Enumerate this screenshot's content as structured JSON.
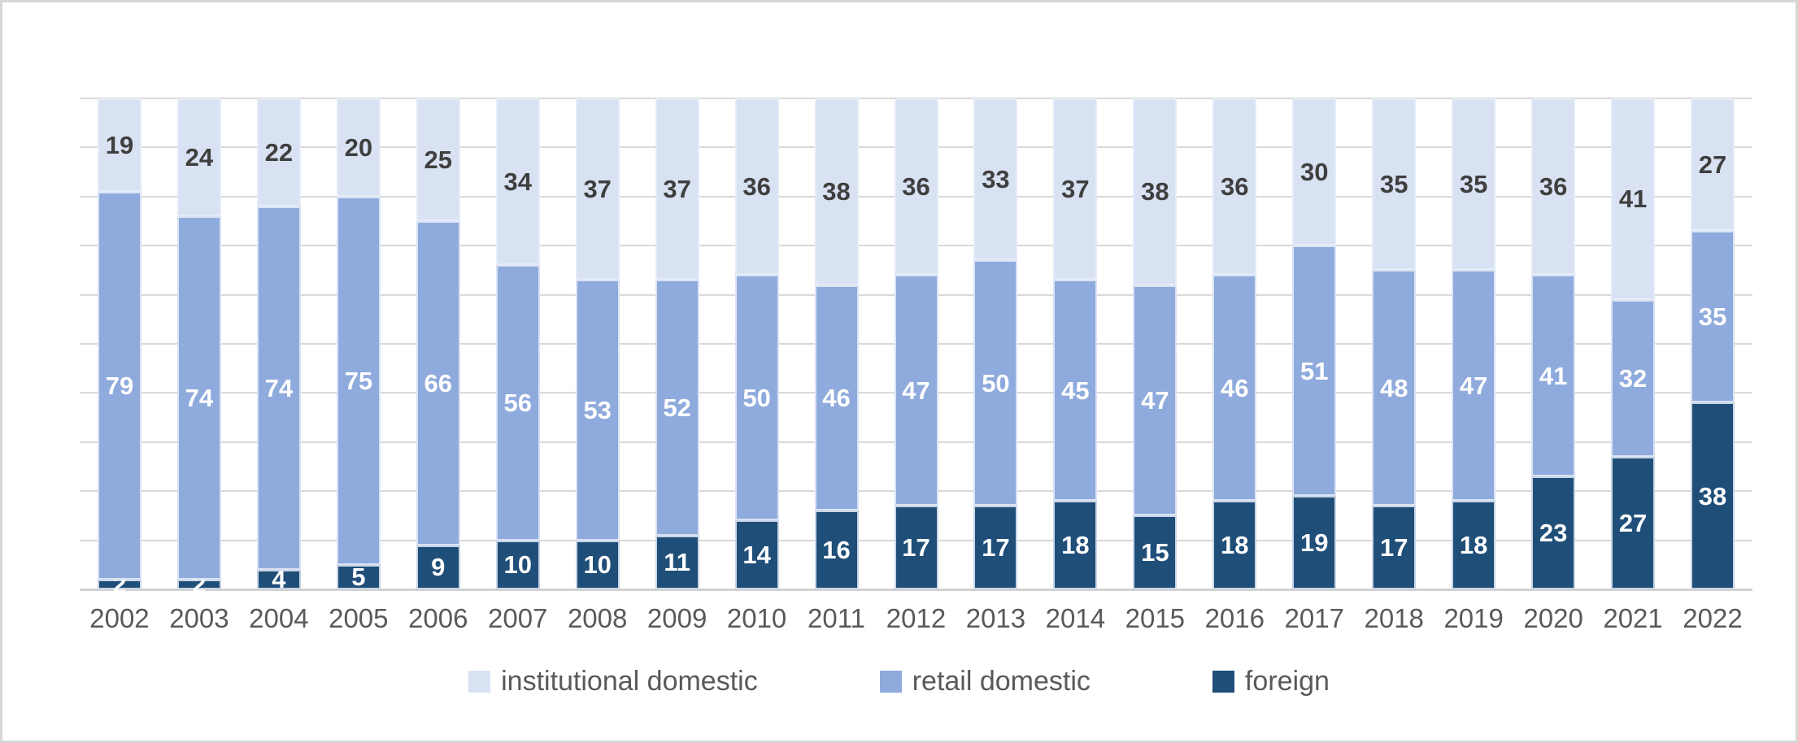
{
  "figure": {
    "background_color": "#FFFFFF",
    "frame_border_color": "#D6D6D6"
  },
  "legend": {
    "position": "bottom",
    "text_color": "#595959",
    "items": [
      {
        "label": "institutional domestic",
        "color": "#D9E2F3"
      },
      {
        "label": "retail domestic",
        "color": "#8FAADC"
      },
      {
        "label": "foreign",
        "color": "#1F4E79"
      }
    ]
  },
  "axis": {
    "x_tick_color": "#595959",
    "gridline_color": "#D9D9D9",
    "y_tick_labels_visible": false
  },
  "chart_data": {
    "type": "bar",
    "subtype": "stacked-100-percent-column",
    "title": "",
    "xlabel": "",
    "ylabel": "",
    "ylim": [
      0,
      100
    ],
    "gridline_interval": 10,
    "grid": true,
    "legend_position": "bottom",
    "data_labels_visible": true,
    "categories": [
      "2002",
      "2003",
      "2004",
      "2005",
      "2006",
      "2007",
      "2008",
      "2009",
      "2010",
      "2011",
      "2012",
      "2013",
      "2014",
      "2015",
      "2016",
      "2017",
      "2018",
      "2019",
      "2020",
      "2021",
      "2022"
    ],
    "series": [
      {
        "name": "institutional domestic",
        "color": "#D9E2F3",
        "label_color": "#3F3F3F",
        "stack_order_from_bottom": 3,
        "values": [
          19,
          24,
          22,
          20,
          25,
          34,
          37,
          37,
          36,
          38,
          36,
          33,
          37,
          38,
          36,
          30,
          35,
          35,
          36,
          41,
          27
        ]
      },
      {
        "name": "retail domestic",
        "color": "#8FAADC",
        "label_color": "#FFFFFF",
        "stack_order_from_bottom": 2,
        "values": [
          79,
          74,
          74,
          75,
          66,
          56,
          53,
          52,
          50,
          46,
          47,
          50,
          45,
          47,
          46,
          51,
          48,
          47,
          41,
          32,
          35
        ]
      },
      {
        "name": "foreign",
        "color": "#1F4E79",
        "label_color": "#FFFFFF",
        "stack_order_from_bottom": 1,
        "values": [
          2,
          2,
          4,
          5,
          9,
          10,
          10,
          11,
          14,
          16,
          17,
          17,
          18,
          15,
          18,
          19,
          17,
          18,
          23,
          27,
          38
        ]
      }
    ]
  }
}
